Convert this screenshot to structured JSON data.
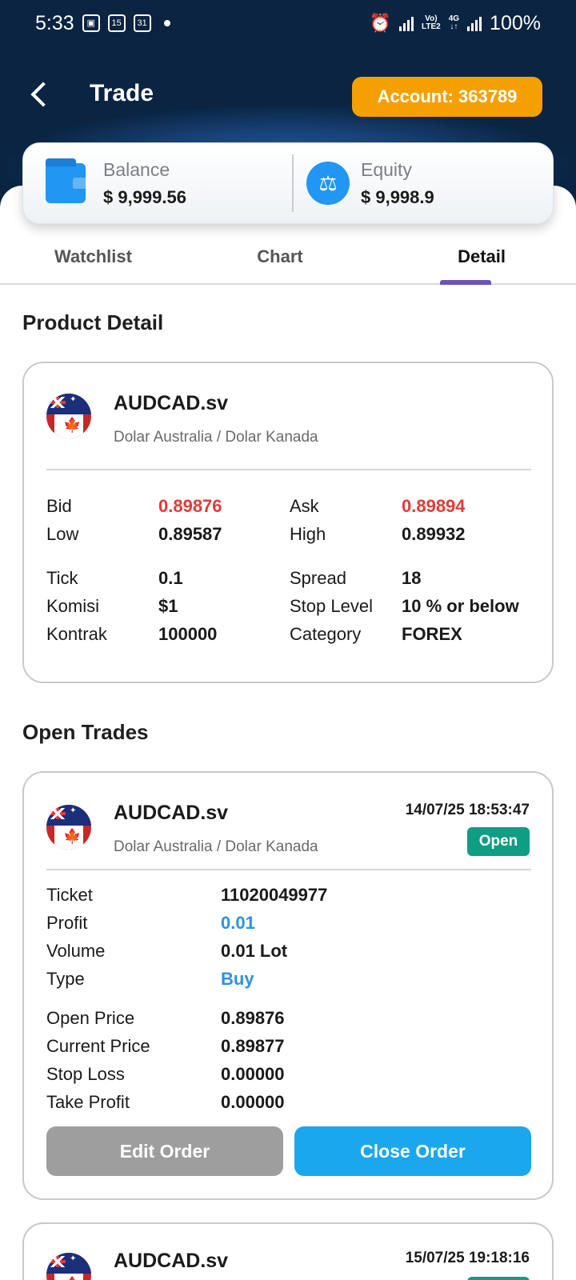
{
  "status_bar": {
    "time": "5:33",
    "left_icons": [
      "image-icon",
      "calendar-15-icon",
      "calendar-31-icon",
      "notification-dot"
    ],
    "cal1": "15",
    "cal2": "31",
    "network": "LTE2",
    "net_top": "Vo)",
    "net_4g": "4G",
    "battery": "100%"
  },
  "header": {
    "title": "Trade",
    "account_label": "Account: 363789"
  },
  "balance": {
    "balance_label": "Balance",
    "balance_value": "$ 9,999.56",
    "equity_label": "Equity",
    "equity_value": "$ 9,998.9"
  },
  "tabs": [
    {
      "label": "Watchlist",
      "active": false
    },
    {
      "label": "Chart",
      "active": false
    },
    {
      "label": "Detail",
      "active": true
    }
  ],
  "product_detail": {
    "section_title": "Product Detail",
    "symbol": "AUDCAD.sv",
    "description": "Dolar Australia / Dolar Kanada",
    "rows": {
      "bid_label": "Bid",
      "bid_value": "0.89876",
      "ask_label": "Ask",
      "ask_value": "0.89894",
      "low_label": "Low",
      "low_value": "0.89587",
      "high_label": "High",
      "high_value": "0.89932",
      "tick_label": "Tick",
      "tick_value": "0.1",
      "spread_label": "Spread",
      "spread_value": "18",
      "komisi_label": "Komisi",
      "komisi_value": "$1",
      "stop_level_label": "Stop Level",
      "stop_level_value": "10 % or below",
      "kontrak_label": "Kontrak",
      "kontrak_value": "100000",
      "category_label": "Category",
      "category_value": "FOREX"
    },
    "colors": {
      "price_red": "#e53935"
    }
  },
  "open_trades": {
    "section_title": "Open Trades",
    "trades": [
      {
        "symbol": "AUDCAD.sv",
        "description": "Dolar Australia / Dolar Kanada",
        "datetime": "14/07/25 18:53:47",
        "status": "Open",
        "ticket_label": "Ticket",
        "ticket_value": "11020049977",
        "profit_label": "Profit",
        "profit_value": "0.01",
        "volume_label": "Volume",
        "volume_value": "0.01 Lot",
        "type_label": "Type",
        "type_value": "Buy",
        "open_price_label": "Open Price",
        "open_price_value": "0.89876",
        "current_price_label": "Current Price",
        "current_price_value": "0.89877",
        "stop_loss_label": "Stop Loss",
        "stop_loss_value": "0.00000",
        "take_profit_label": "Take Profit",
        "take_profit_value": "0.00000",
        "edit_label": "Edit Order",
        "close_label": "Close Order"
      },
      {
        "symbol": "AUDCAD.sv",
        "datetime": "15/07/25 19:18:16"
      }
    ],
    "colors": {
      "open_badge": "#0f9d84",
      "positive_blue": "#2a92e6",
      "close_button": "#1aa7ee",
      "edit_button": "#9e9e9e"
    }
  },
  "accent_colors": {
    "account_badge": "#f5a000",
    "tab_indicator": "#6a55b4",
    "header_bg": "#0a2442"
  }
}
